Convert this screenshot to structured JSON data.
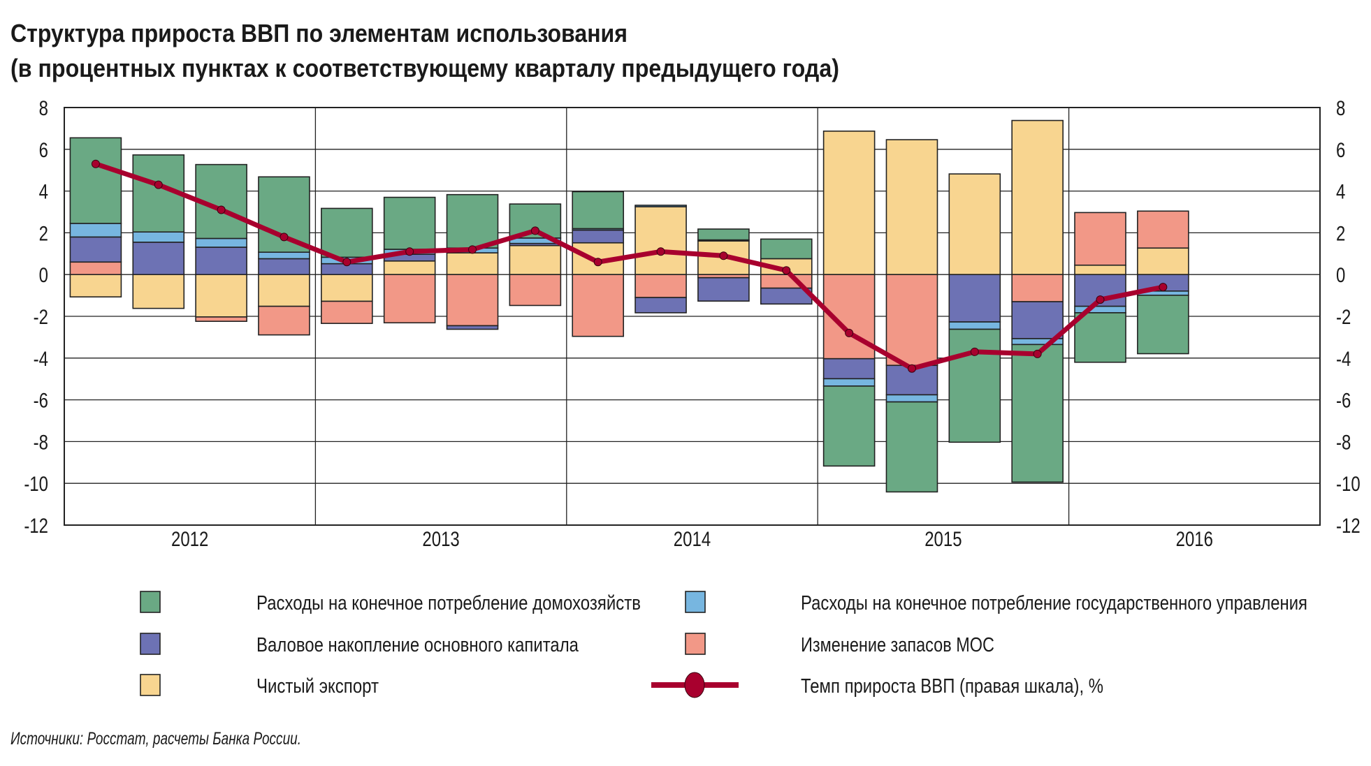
{
  "chart_data": {
    "type": "bar",
    "stacked": true,
    "title": "Структура прироста ВВП по элементам использования",
    "subtitle": "(в процентных пунктах к соответствующему кварталу предыдущего года)",
    "years": [
      "2012",
      "2013",
      "2014",
      "2015",
      "2016"
    ],
    "quarters_per_year": 4,
    "ylim": [
      -12,
      8
    ],
    "y_ticks": [
      "8",
      "6",
      "4",
      "2",
      "0",
      "-2",
      "-4",
      "-6",
      "-8",
      "-10",
      "-12"
    ],
    "grid": true,
    "legend_position": "bottom",
    "series": [
      {
        "name": "Чистый экспорт",
        "color": "#f8d590",
        "values": [
          -1.07,
          -1.62,
          -2.03,
          -1.52,
          -1.28,
          0.65,
          1.04,
          1.39,
          1.52,
          3.25,
          1.61,
          0.76,
          6.87,
          6.46,
          4.82,
          7.38,
          0.45,
          1.27
        ]
      },
      {
        "name": "Изменение запасов МОС",
        "color": "#f29887",
        "values": [
          0.6,
          0.0,
          -0.21,
          -1.37,
          -1.06,
          -2.31,
          -2.45,
          -1.48,
          -2.96,
          -1.1,
          -0.15,
          -0.65,
          -4.03,
          -4.35,
          0.0,
          -1.3,
          2.52,
          1.77
        ]
      },
      {
        "name": "Валовое накопление основного капитала",
        "color": "#6d72b4",
        "values": [
          1.2,
          1.55,
          1.31,
          0.76,
          0.52,
          0.32,
          -0.17,
          0.1,
          0.61,
          -0.73,
          -1.12,
          -0.76,
          -0.96,
          -1.41,
          -2.27,
          -1.77,
          -1.52,
          -0.79
        ]
      },
      {
        "name": "Расходы на конечное потребление государственного управления",
        "color": "#77b6e0",
        "values": [
          0.65,
          0.49,
          0.42,
          0.31,
          0.31,
          0.24,
          0.23,
          0.26,
          0.07,
          0.07,
          0.05,
          0.0,
          -0.35,
          -0.34,
          -0.35,
          -0.28,
          -0.31,
          -0.2
        ]
      },
      {
        "name": "Расходы на конечное потребление домохозяйств",
        "color": "#6aa984",
        "values": [
          4.1,
          3.69,
          3.54,
          3.61,
          2.34,
          2.49,
          2.56,
          1.63,
          1.77,
          0.0,
          0.52,
          0.94,
          -3.83,
          -4.31,
          -5.41,
          -6.59,
          -2.37,
          -2.8
        ]
      }
    ],
    "line": {
      "name": "Темп прироста ВВП (правая шкала), %",
      "color": "#a8002e",
      "values": [
        5.3,
        4.3,
        3.1,
        1.8,
        0.6,
        1.1,
        1.2,
        2.1,
        0.6,
        1.1,
        0.9,
        0.2,
        -2.8,
        -4.5,
        -3.7,
        -3.8,
        -1.2,
        -0.6
      ]
    }
  },
  "legend": [
    {
      "label": "Расходы на конечное потребление домохозяйств",
      "color": "#6aa984"
    },
    {
      "label": "Расходы на конечное потребление государственного управления",
      "color": "#77b6e0"
    },
    {
      "label": "Валовое накопление основного капитала",
      "color": "#6d72b4"
    },
    {
      "label": "Изменение запасов МОС",
      "color": "#f29887"
    },
    {
      "label": "Чистый экспорт",
      "color": "#f8d590"
    },
    {
      "label": "Темп прироста ВВП (правая шкала), %",
      "color": "#a8002e"
    }
  ],
  "source": "Источники: Росстат, расчеты Банка России."
}
